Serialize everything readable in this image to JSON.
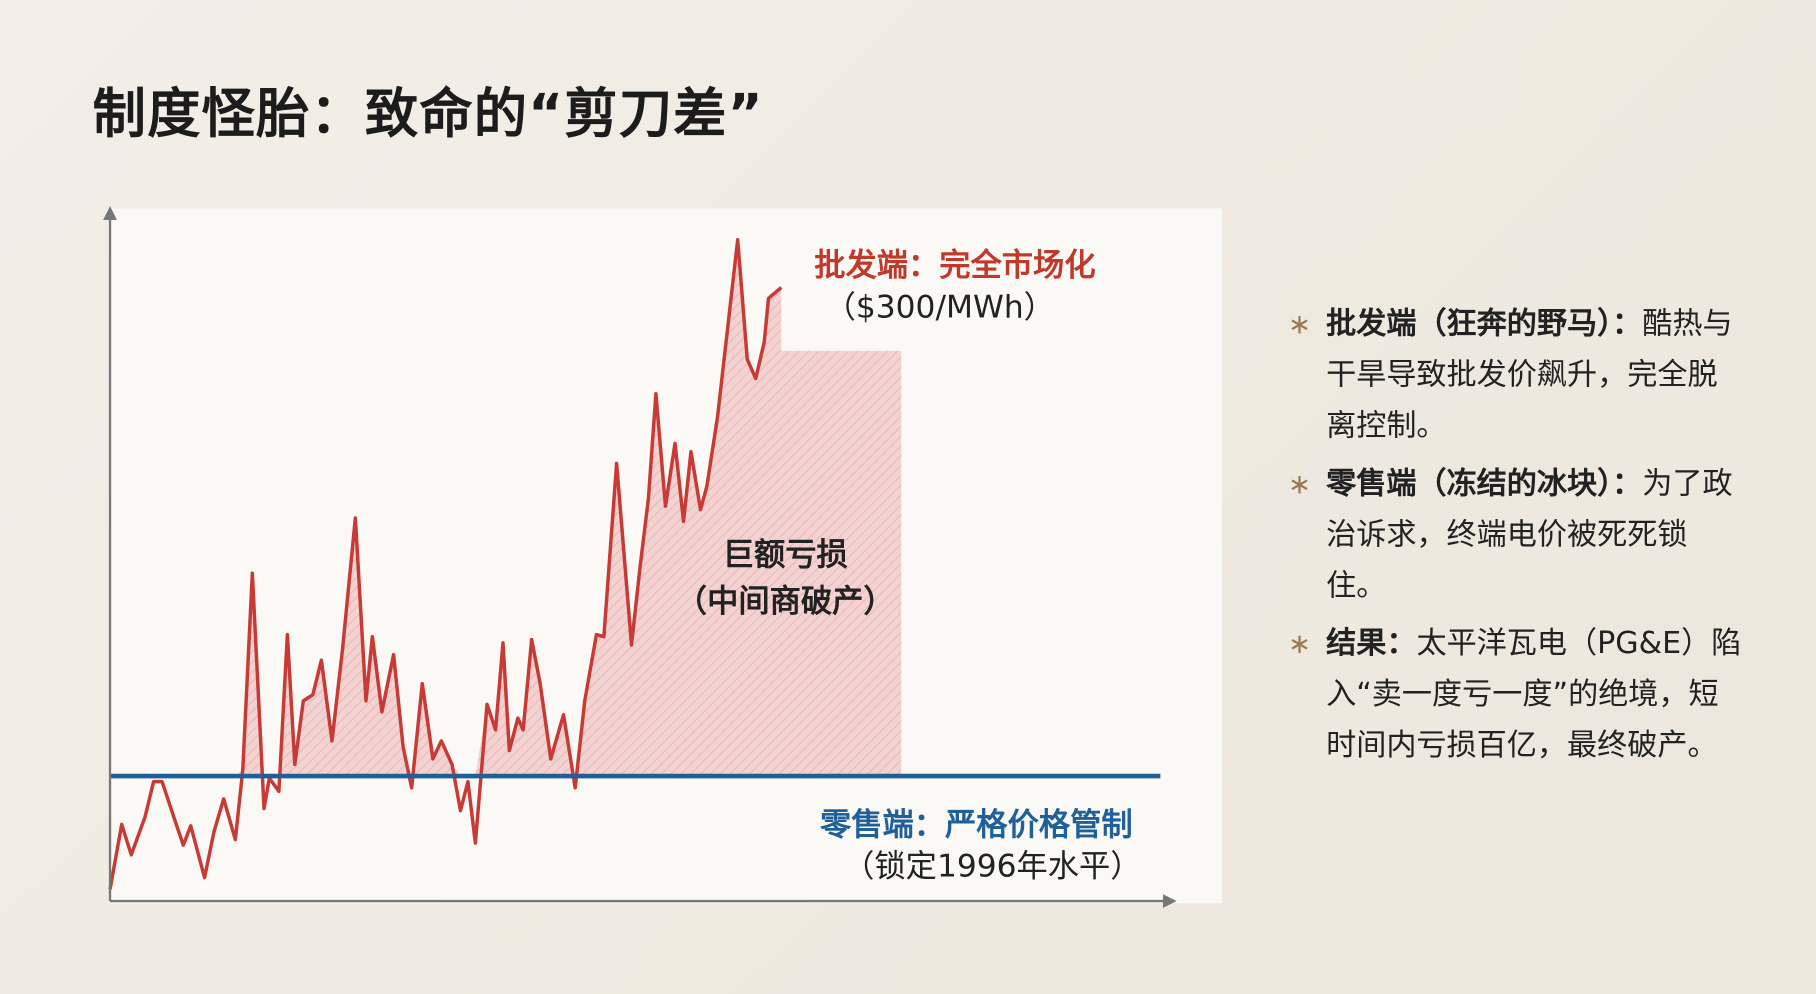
{
  "title": "制度怪胎：致命的“剪刀差”",
  "chart_data": {
    "type": "line",
    "xlim": [
      0,
      100
    ],
    "ylim": [
      0,
      100
    ],
    "series": [
      {
        "color": "#c83a35",
        "x": [
          0,
          1.1,
          2.0,
          3.3,
          4.1,
          4.9,
          6.0,
          6.9,
          7.6,
          8.9,
          9.8,
          10.7,
          11.8,
          12.5,
          13.4,
          14.5,
          15.0,
          15.9,
          16.7,
          17.4,
          18.2,
          19.1,
          19.9,
          20.9,
          21.9,
          23.1,
          24.1,
          24.7,
          25.6,
          26.7,
          27.6,
          28.4,
          29.4,
          30.4,
          31.2,
          32.2,
          33.0,
          33.7,
          34.4,
          35.5,
          36.3,
          37.0,
          37.6,
          38.4,
          38.9,
          39.7,
          40.5,
          41.5,
          42.7,
          43.8,
          44.7,
          45.8,
          46.5,
          47.7,
          49.1,
          49.9,
          50.7,
          51.4,
          52.3,
          53.2,
          54.0,
          54.7,
          55.6,
          56.2,
          57.2,
          59.1,
          60.0,
          60.8,
          61.6,
          62.0,
          63.2
        ],
        "values": [
          1.7,
          11.1,
          6.7,
          12.2,
          17.3,
          17.3,
          12.2,
          8.1,
          10.9,
          3.4,
          10.1,
          14.8,
          8.9,
          19.0,
          47.5,
          13.4,
          17.8,
          15.9,
          38.6,
          19.8,
          29.0,
          29.9,
          34.9,
          23.2,
          36.6,
          55.5,
          29.0,
          38.3,
          27.4,
          35.7,
          22.3,
          16.4,
          31.5,
          20.6,
          23.2,
          19.8,
          13.1,
          17.3,
          8.4,
          28.5,
          24.8,
          37.4,
          21.8,
          26.5,
          24.8,
          37.9,
          31.5,
          20.6,
          27.0,
          16.4,
          29.0,
          38.6,
          38.3,
          63.4,
          37.1,
          48.3,
          58.4,
          73.5,
          57.2,
          66.3,
          55.0,
          65.1,
          56.7,
          60.1,
          70.1,
          95.8,
          78.5,
          75.7,
          81.0,
          87.3,
          88.9
        ]
      },
      {
        "color": "#1f5f9a",
        "x": [
          0,
          98.9
        ],
        "values": [
          18.1,
          18.1
        ]
      }
    ],
    "loss_area": {
      "color": "#e7a3a3",
      "top": 79.7,
      "x_end": 74.5
    },
    "annotations": [
      "批发端：完全市场化",
      "（$300/MWh）",
      "巨额亏损",
      "（中间商破产）",
      "零售端：严格价格管制",
      "（锁定1996年水平）"
    ]
  },
  "bullets": [
    {
      "heading": "批发端（狂奔的野马）：",
      "text": "酷热与干旱导致批发价飙升，完全脱离控制。"
    },
    {
      "heading": "零售端（冻结的冰块）：",
      "text": "为了政治诉求，终端电价被死死锁住。"
    },
    {
      "heading": "结果：",
      "text": "太平洋瓦电（PG&E）陷入“卖一度亏一度”的绝境，短时间内亏损百亿，最终破产。"
    }
  ]
}
